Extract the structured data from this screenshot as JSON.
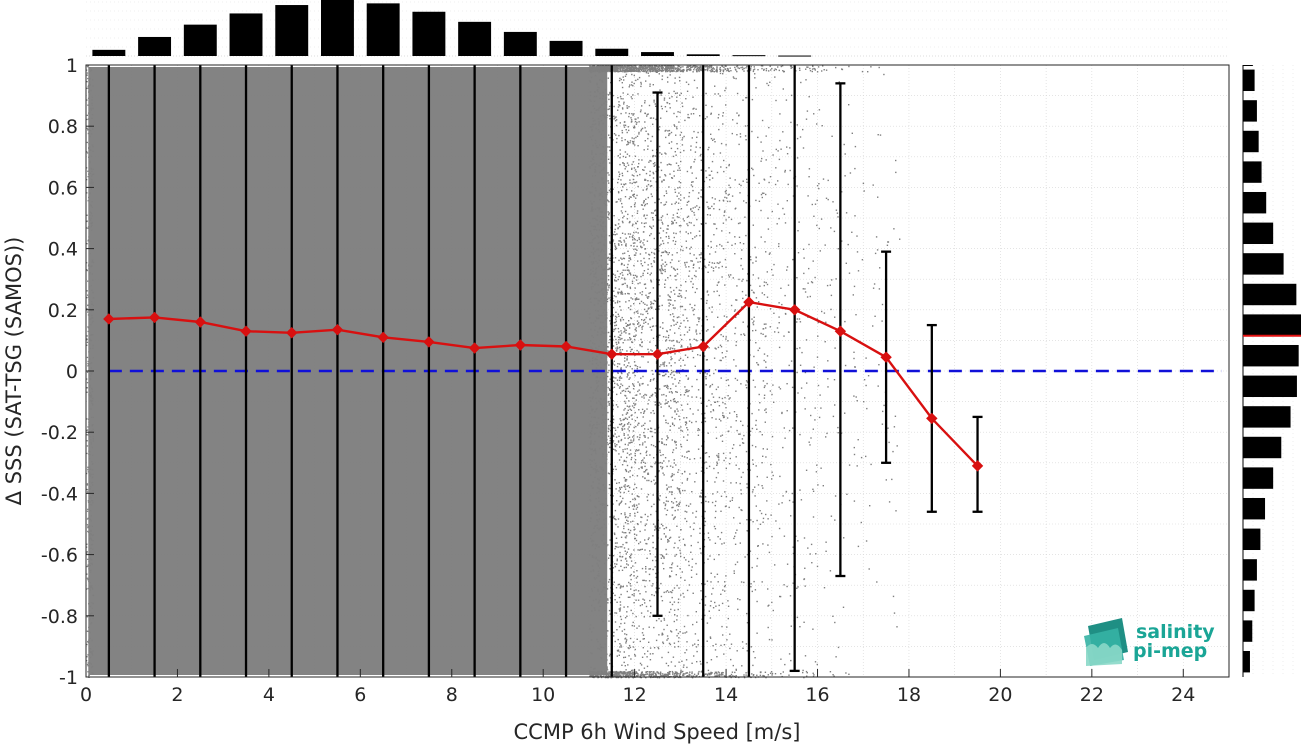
{
  "chart_data": {
    "type": "scatter",
    "xlabel": "CCMP 6h Wind Speed [m/s]",
    "ylabel": "Δ SSS (SAT-TSG (SAMOS))",
    "xlim": [
      0,
      25
    ],
    "ylim": [
      -1,
      1
    ],
    "x_ticks": [
      "0",
      "2",
      "4",
      "6",
      "8",
      "10",
      "12",
      "14",
      "16",
      "18",
      "20",
      "22",
      "24"
    ],
    "y_ticks": [
      "-1",
      "-0.8",
      "-0.6",
      "-0.4",
      "-0.2",
      "0",
      "0.2",
      "0.4",
      "0.6",
      "0.8",
      "1"
    ],
    "grid": true,
    "reference_line": {
      "y": 0,
      "style": "dashed",
      "color": "#1010d8"
    },
    "binned_mean": {
      "color": "#d81010",
      "x": [
        0.5,
        1.5,
        2.5,
        3.5,
        4.5,
        5.5,
        6.5,
        7.5,
        8.5,
        9.5,
        10.5,
        11.5,
        12.5,
        13.5,
        14.5,
        15.5,
        16.5,
        17.5,
        18.5,
        19.5
      ],
      "y": [
        0.17,
        0.175,
        0.16,
        0.13,
        0.125,
        0.135,
        0.11,
        0.095,
        0.075,
        0.085,
        0.08,
        0.055,
        0.055,
        0.08,
        0.225,
        0.2,
        0.13,
        0.045,
        -0.155,
        -0.31
      ],
      "err_low": [
        -1,
        -1,
        -1,
        -1,
        -1,
        -1,
        -1,
        -1,
        -1,
        -1,
        -1,
        -1,
        -0.8,
        -1,
        -1,
        -0.98,
        -0.67,
        -0.3,
        -0.46,
        -0.46
      ],
      "err_high": [
        1,
        1,
        1,
        1,
        1,
        1,
        1,
        1,
        1,
        1,
        1,
        1,
        0.91,
        1,
        1,
        1,
        0.94,
        0.39,
        0.15,
        -0.15
      ]
    },
    "scatter_point_color": "#7f7f7f",
    "histogram_top": {
      "bin_centers": [
        0.5,
        1.5,
        2.5,
        3.5,
        4.5,
        5.5,
        6.5,
        7.5,
        8.5,
        9.5,
        10.5,
        11.5,
        12.5,
        13.5,
        14.5,
        15.5
      ],
      "relative_counts": [
        0.11,
        0.34,
        0.56,
        0.76,
        0.91,
        1.0,
        0.94,
        0.79,
        0.61,
        0.43,
        0.27,
        0.13,
        0.07,
        0.03,
        0.015,
        0.008
      ]
    },
    "histogram_right": {
      "bin_edges_y": [
        -1,
        -0.9,
        -0.8,
        -0.7,
        -0.6,
        -0.5,
        -0.4,
        -0.3,
        -0.2,
        -0.1,
        0,
        0.1,
        0.2,
        0.3,
        0.4,
        0.5,
        0.6,
        0.7,
        0.8,
        0.9,
        1
      ],
      "relative_counts": [
        0.12,
        0.16,
        0.2,
        0.24,
        0.3,
        0.38,
        0.52,
        0.66,
        0.82,
        0.93,
        0.96,
        1.0,
        0.92,
        0.7,
        0.52,
        0.4,
        0.32,
        0.27,
        0.24,
        0.2,
        0.17
      ],
      "median_line_y": 0.115,
      "median_line_color": "#e01010"
    }
  },
  "logo": {
    "line1": "salinity",
    "line2": "pi-mep",
    "color": "#1aa596"
  }
}
